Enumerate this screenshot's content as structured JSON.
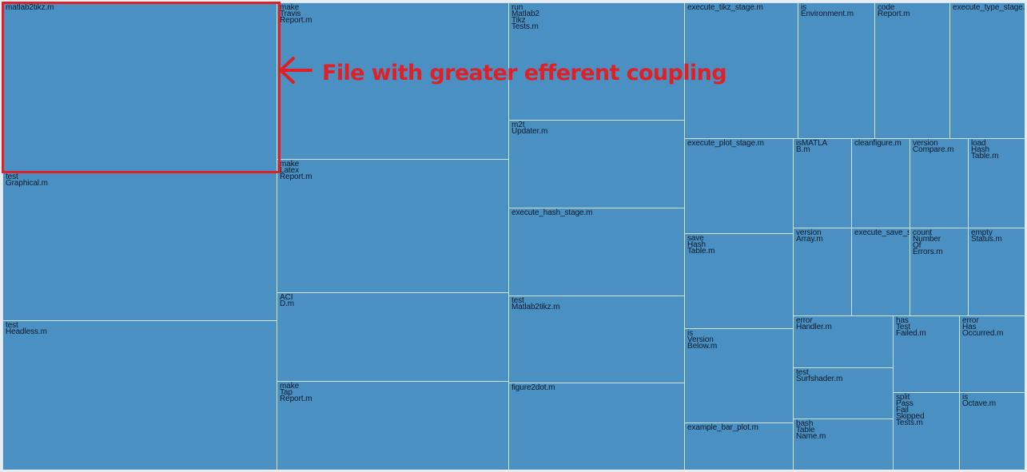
{
  "chart_data": {
    "type": "treemap",
    "cells": [
      {
        "label": "matlab2tikz.m"
      },
      {
        "label": "test\nGraphical.m"
      },
      {
        "label": "test\nHeadless.m"
      },
      {
        "label": "make\nTravis\nReport.m"
      },
      {
        "label": "make\nLatex\nReport.m"
      },
      {
        "label": "ACI\nD.m"
      },
      {
        "label": "make\nTap\nReport.m"
      },
      {
        "label": "run\nMatlab2\nTikz\nTests.m"
      },
      {
        "label": "m2t\nUpdater.m"
      },
      {
        "label": "execute_hash_stage.m"
      },
      {
        "label": "test\nMatlab2tikz.m"
      },
      {
        "label": "figure2dot.m"
      },
      {
        "label": "execute_tikz_stage.m"
      },
      {
        "label": "is\nEnvironment.m"
      },
      {
        "label": "code\nReport.m"
      },
      {
        "label": "execute_type_stage.m"
      },
      {
        "label": "execute_plot_stage.m"
      },
      {
        "label": "isMATLA\nB.m"
      },
      {
        "label": "cleanfigure.m"
      },
      {
        "label": "version\nCompare.m"
      },
      {
        "label": "load\nHash\nTable.m"
      },
      {
        "label": "save\nHash\nTable.m"
      },
      {
        "label": "version\nArray.m"
      },
      {
        "label": "execute_save_stage.m"
      },
      {
        "label": "count\nNumber\nOf\nErrors.m"
      },
      {
        "label": "empty\nStatus.m"
      },
      {
        "label": "is\nVersion\nBelow.m"
      },
      {
        "label": "error\nHandler.m"
      },
      {
        "label": "has\nTest\nFailed.m"
      },
      {
        "label": "error\nHas\nOccurred.m"
      },
      {
        "label": "test\nSurfshader.m"
      },
      {
        "label": "example_bar_plot.m"
      },
      {
        "label": "bash\nTable\nName.m"
      },
      {
        "label": "split\nPass\nFail\nSkipped\nTests.m"
      },
      {
        "label": "is\nOctave.m"
      }
    ]
  },
  "annotation": {
    "text": "File with greater efferent coupling",
    "color": "#e02027"
  },
  "colors": {
    "cell_fill": "#4a90c2",
    "cell_border": "#cfe0ee",
    "highlight": "#e02027"
  }
}
